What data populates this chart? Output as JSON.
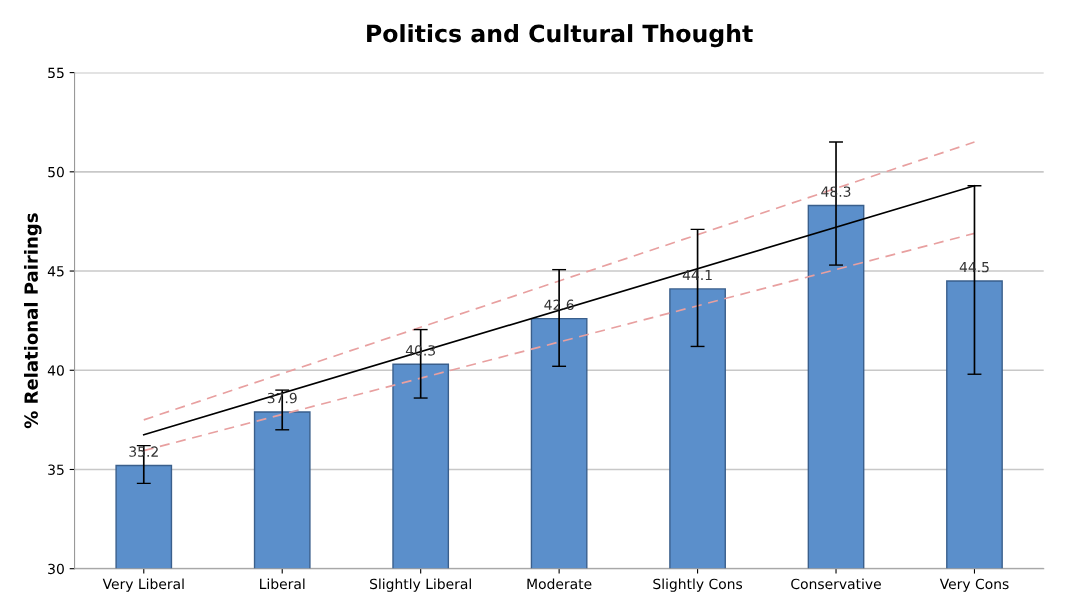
{
  "chart_data": {
    "type": "bar",
    "title": "Politics and Cultural Thought",
    "ylabel": "% Relational Pairings",
    "categories": [
      "Very Liberal",
      "Liberal",
      "Slightly Liberal",
      "Moderate",
      "Slightly Cons",
      "Conservative",
      "Very Cons"
    ],
    "series": [
      {
        "color": "#5b8fcb",
        "values": [
          35.2,
          37.9,
          40.3,
          42.6,
          44.1,
          48.3,
          44.5
        ],
        "value_labels": [
          "35.2",
          "37.9",
          "40.3",
          "42.6",
          "44.1",
          "48.3",
          "44.5"
        ],
        "errors": [
          [
            34.3,
            36.2
          ],
          [
            37.0,
            39.0
          ],
          [
            38.6,
            42.05
          ],
          [
            40.2,
            45.07
          ],
          [
            41.2,
            47.1
          ],
          [
            45.3,
            51.5
          ],
          [
            39.8,
            49.3
          ]
        ]
      },
      {
        "type": "line",
        "color": "#000000",
        "line_style": "solid",
        "x": [
          "Very Liberal",
          "Very Cons"
        ],
        "values": [
          36.75,
          49.3
        ]
      },
      {
        "type": "line",
        "color": "#e8a0a0",
        "line_style": "dashed",
        "x": [
          "Very Liberal",
          "Very Cons"
        ],
        "values": [
          37.5,
          51.5
        ]
      },
      {
        "type": "line",
        "color": "#e8a0a0",
        "line_style": "dashed",
        "x": [
          "Very Liberal",
          "Very Cons"
        ],
        "values": [
          35.95,
          46.9
        ]
      }
    ],
    "ylim": [
      30,
      55
    ],
    "yticks": [
      30,
      35,
      40,
      45,
      50,
      55
    ],
    "grid": "y"
  }
}
